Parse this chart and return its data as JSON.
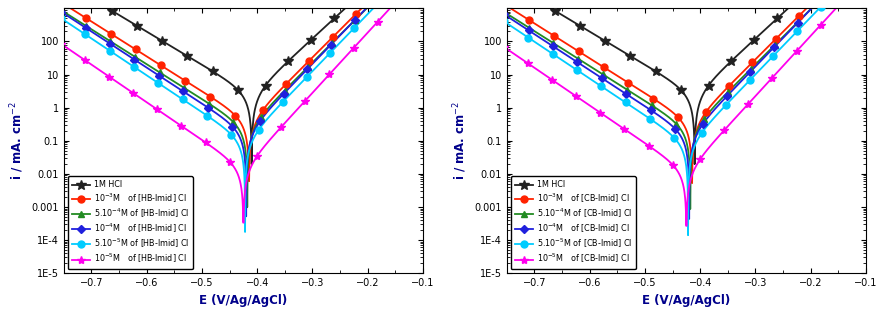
{
  "xlim": [
    -0.75,
    -0.1
  ],
  "ylim_log": [
    1e-05,
    1000
  ],
  "xlabel": "E (V/Ag/AgCl)",
  "ylabel": "i / mA. cm$^{-2}$",
  "ecorr": -0.41,
  "series_colors": [
    "#222222",
    "#ff2200",
    "#228B22",
    "#2020dd",
    "#00ccff",
    "#ff00ee"
  ],
  "series_markers": [
    "*",
    "o",
    "^",
    "D",
    "o",
    "*"
  ],
  "series_marker_sizes": [
    7,
    5,
    5,
    4,
    5,
    6
  ],
  "series_labels_hb": [
    "1M HCl",
    "$10^{-3}$M   of [HB-Imid] Cl",
    "$5.10^{-4}$M of [HB-Imid] Cl",
    "$10^{-4}$M   of [HB-Imid] Cl",
    "$5.10^{-5}$M of [HB-Imid] Cl",
    "$10^{-5}$M   of [HB-Imid] Cl"
  ],
  "series_labels_cb": [
    "1M HCl",
    "$10^{-3}$M   of [CB-Imid] Cl",
    "$5.10^{-4}$M of [CB-Imid] Cl",
    "$10^{-4}$M   of [CB-Imid] Cl",
    "$5.10^{-5}$M of [CB-Imid] Cl",
    "$10^{-5}$M   of [CB-Imid] Cl"
  ],
  "ylabel_color": "#00008B",
  "xlabel_color": "#00008B",
  "background_color": "#ffffff",
  "hcl": {
    "icorr": 2.5,
    "ba": 0.065,
    "bc": 0.1,
    "ecorr": -0.41
  },
  "inh_hb": [
    {
      "icorr": 0.4,
      "ba": 0.06,
      "bc": 0.095,
      "ecorr": -0.415
    },
    {
      "icorr": 0.25,
      "ba": 0.06,
      "bc": 0.095,
      "ecorr": -0.418
    },
    {
      "icorr": 0.18,
      "ba": 0.058,
      "bc": 0.092,
      "ecorr": -0.42
    },
    {
      "icorr": 0.1,
      "ba": 0.058,
      "bc": 0.09,
      "ecorr": -0.422
    },
    {
      "icorr": 0.015,
      "ba": 0.055,
      "bc": 0.088,
      "ecorr": -0.425
    }
  ],
  "inh_cb": [
    {
      "icorr": 0.35,
      "ba": 0.06,
      "bc": 0.095,
      "ecorr": -0.415
    },
    {
      "icorr": 0.22,
      "ba": 0.06,
      "bc": 0.095,
      "ecorr": -0.418
    },
    {
      "icorr": 0.15,
      "ba": 0.058,
      "bc": 0.092,
      "ecorr": -0.42
    },
    {
      "icorr": 0.08,
      "ba": 0.058,
      "bc": 0.09,
      "ecorr": -0.422
    },
    {
      "icorr": 0.012,
      "ba": 0.055,
      "bc": 0.088,
      "ecorr": -0.425
    }
  ]
}
